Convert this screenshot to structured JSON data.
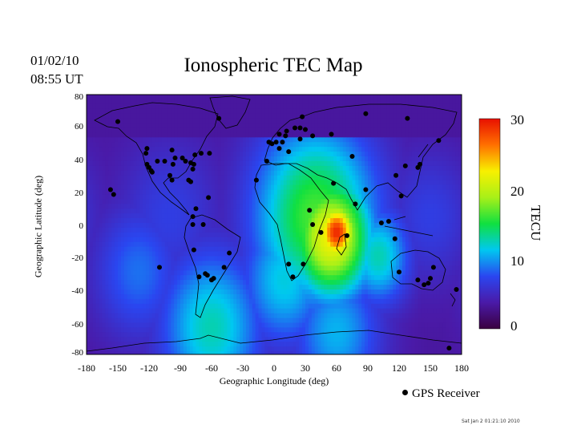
{
  "header": {
    "date": "01/02/10",
    "time": "08:55 UT",
    "title": "Ionospheric TEC Map"
  },
  "legend": {
    "receiver_label": "GPS Receiver"
  },
  "footer": {
    "stamp": "Sat Jan  2 01:21:10 2010"
  },
  "chart_data": {
    "type": "heatmap",
    "title": "Ionospheric TEC Map",
    "xlabel": "Geographic Longitude (deg)",
    "ylabel": "Geographic Latitude (deg)",
    "xlim": [
      -180,
      180
    ],
    "ylim": [
      -82,
      82
    ],
    "x_ticks": [
      "-180",
      "-150",
      "-120",
      "-90",
      "-60",
      "-30",
      "0",
      "30",
      "60",
      "90",
      "120",
      "150",
      "180"
    ],
    "y_ticks": [
      "80",
      "60",
      "40",
      "20",
      "0",
      "-20",
      "-40",
      "-60",
      "-80"
    ],
    "colorbar": {
      "label": "TECU",
      "range": [
        0,
        31
      ],
      "ticks": [
        "30",
        "20",
        "10",
        "0"
      ],
      "colors": [
        "#3a0040",
        "#4a1aa8",
        "#2a46f0",
        "#00c8f0",
        "#10e040",
        "#a8f018",
        "#f8f000",
        "#ff7000",
        "#e81000"
      ]
    },
    "tec_blobs": [
      {
        "lon": 60,
        "lat": -5,
        "sigma": 14,
        "tec": 30
      },
      {
        "lon": 55,
        "lat": -8,
        "sigma": 28,
        "tec": 23
      },
      {
        "lon": 40,
        "lat": 5,
        "sigma": 42,
        "tec": 17
      },
      {
        "lon": 100,
        "lat": -20,
        "sigma": 22,
        "tec": 13
      },
      {
        "lon": 10,
        "lat": -35,
        "sigma": 30,
        "tec": 12
      },
      {
        "lon": -60,
        "lat": -65,
        "sigma": 35,
        "tec": 13
      },
      {
        "lon": 60,
        "lat": -68,
        "sigma": 30,
        "tec": 11
      },
      {
        "lon": -130,
        "lat": -30,
        "sigma": 30,
        "tec": 9
      },
      {
        "lon": -100,
        "lat": 5,
        "sigma": 35,
        "tec": 7
      },
      {
        "lon": 150,
        "lat": 5,
        "sigma": 30,
        "tec": 7
      }
    ],
    "receivers": [
      [
        -150,
        65
      ],
      [
        -157,
        22
      ],
      [
        -154,
        19
      ],
      [
        -122,
        48
      ],
      [
        -123,
        45
      ],
      [
        -122,
        38
      ],
      [
        -118,
        34
      ],
      [
        -117,
        33
      ],
      [
        -120,
        36
      ],
      [
        -105,
        40
      ],
      [
        -112,
        40
      ],
      [
        -97,
        38
      ],
      [
        -100,
        31
      ],
      [
        -98,
        28
      ],
      [
        -98,
        47
      ],
      [
        -95,
        42
      ],
      [
        -88,
        42
      ],
      [
        -85,
        40
      ],
      [
        -80,
        39
      ],
      [
        -77,
        38
      ],
      [
        -76,
        44
      ],
      [
        -78,
        35
      ],
      [
        -80,
        27
      ],
      [
        -82,
        28
      ],
      [
        -70,
        45
      ],
      [
        -62,
        45
      ],
      [
        -63,
        17
      ],
      [
        -53,
        67
      ],
      [
        -110,
        -27
      ],
      [
        -78,
        0
      ],
      [
        -68,
        0
      ],
      [
        -75,
        10
      ],
      [
        -78,
        5
      ],
      [
        -77,
        -16
      ],
      [
        -72,
        -33
      ],
      [
        -66,
        -31
      ],
      [
        -64,
        -32
      ],
      [
        -60,
        -35
      ],
      [
        -58,
        -34
      ],
      [
        -48,
        -27
      ],
      [
        -43,
        -18
      ],
      [
        -17,
        28
      ],
      [
        -7,
        40
      ],
      [
        -5,
        52
      ],
      [
        -2,
        51
      ],
      [
        2,
        52
      ],
      [
        5,
        48
      ],
      [
        5,
        57
      ],
      [
        11,
        56
      ],
      [
        12,
        59
      ],
      [
        8,
        52
      ],
      [
        14,
        46
      ],
      [
        20,
        61
      ],
      [
        25,
        61
      ],
      [
        25,
        54
      ],
      [
        30,
        60
      ],
      [
        37,
        56
      ],
      [
        55,
        57
      ],
      [
        27,
        68
      ],
      [
        88,
        70
      ],
      [
        75,
        43
      ],
      [
        57,
        26
      ],
      [
        34,
        9
      ],
      [
        37,
        0
      ],
      [
        18,
        -33
      ],
      [
        14,
        -25
      ],
      [
        28,
        -25
      ],
      [
        45,
        -5
      ],
      [
        78,
        13
      ],
      [
        70,
        -7
      ],
      [
        88,
        22
      ],
      [
        117,
        31
      ],
      [
        126,
        37
      ],
      [
        138,
        36
      ],
      [
        140,
        38
      ],
      [
        128,
        67
      ],
      [
        158,
        53
      ],
      [
        110,
        2
      ],
      [
        116,
        -9
      ],
      [
        122,
        18
      ],
      [
        103,
        1
      ],
      [
        120,
        -30
      ],
      [
        138,
        -35
      ],
      [
        144,
        -38
      ],
      [
        148,
        -37
      ],
      [
        150,
        -34
      ],
      [
        153,
        -27
      ],
      [
        175,
        -41
      ],
      [
        168,
        -78
      ]
    ]
  }
}
